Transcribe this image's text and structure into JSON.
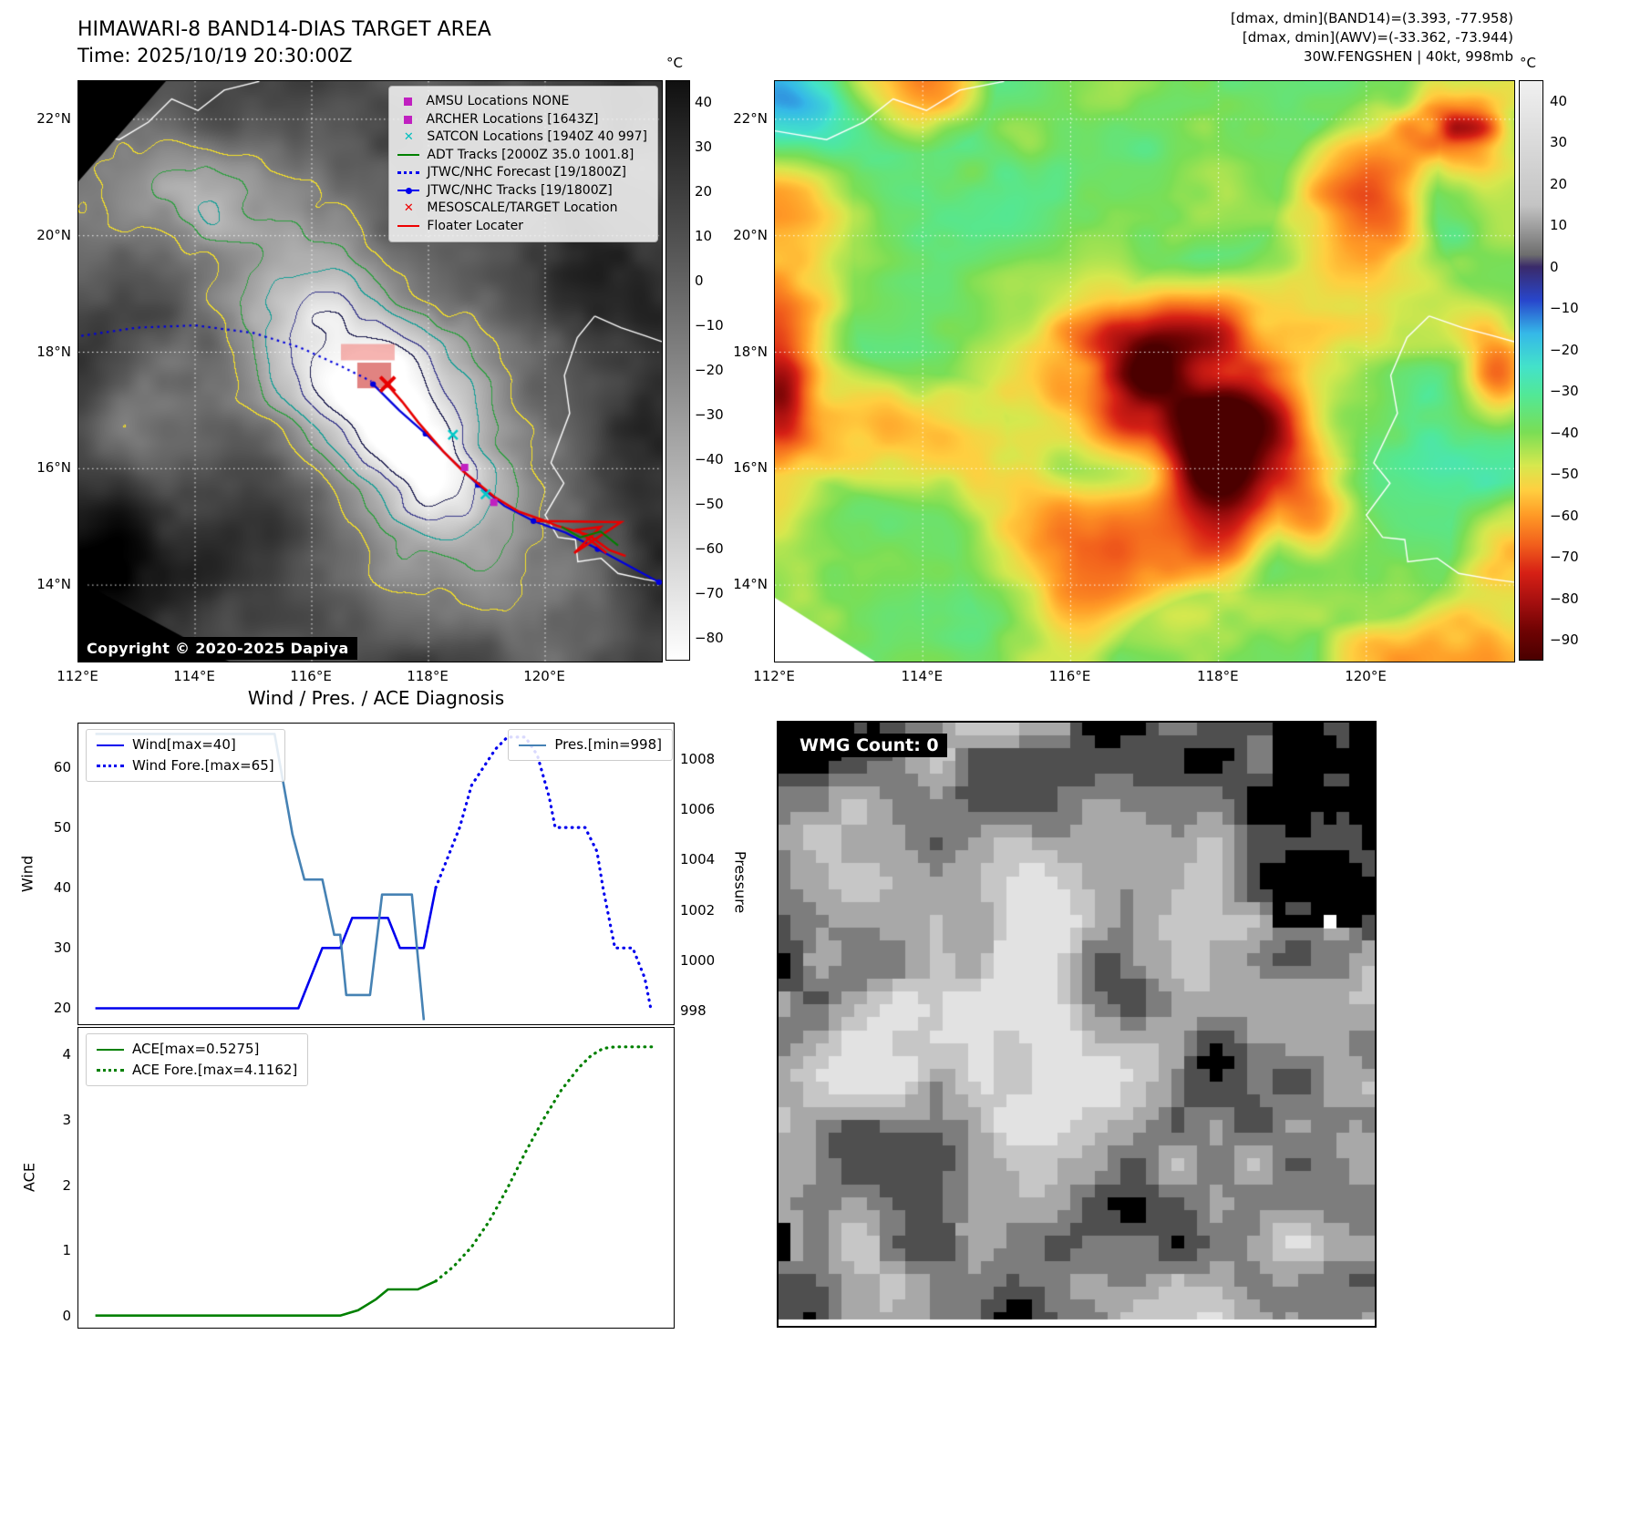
{
  "band14": {
    "title": "HIMAWARI-8 BAND14-DIAS TARGET AREA",
    "time_label": "Time: 2025/10/19 20:30:00Z",
    "copyright": "Copyright © 2020-2025 Dapiya",
    "colorbar_unit": "°C",
    "colorbar_ticks": [
      "40",
      "30",
      "20",
      "10",
      "0",
      "−10",
      "−20",
      "−30",
      "−40",
      "−50",
      "−60",
      "−70",
      "−80"
    ],
    "x_ticks": [
      "112°E",
      "114°E",
      "116°E",
      "118°E",
      "120°E"
    ],
    "y_ticks": [
      "22°N",
      "20°N",
      "18°N",
      "16°N",
      "14°N"
    ],
    "legend": [
      {
        "label": "AMSU Locations NONE",
        "type": "square",
        "color": "#c020c0"
      },
      {
        "label": "ARCHER Locations [1643Z]",
        "type": "square",
        "color": "#c020c0"
      },
      {
        "label": "SATCON Locations [1940Z 40 997]",
        "type": "x",
        "color": "#00bfbf"
      },
      {
        "label": "ADT Tracks [2000Z 35.0 1001.8]",
        "type": "line",
        "color": "#008000"
      },
      {
        "label": "JTWC/NHC Forecast [19/1800Z]",
        "type": "dotted",
        "color": "#0000ee"
      },
      {
        "label": "JTWC/NHC Tracks [19/1800Z]",
        "type": "line-dot",
        "color": "#0000ee"
      },
      {
        "label": "MESOSCALE/TARGET Location",
        "type": "x",
        "color": "#ee0000"
      },
      {
        "label": "Floater Locater",
        "type": "line",
        "color": "#ee0000"
      }
    ]
  },
  "awv": {
    "header_lines": [
      "[dmax, dmin](BAND14)=(3.393, -77.958)",
      "[dmax, dmin](AWV)=(-33.362, -73.944)",
      "30W.FENGSHEN | 40kt, 998mb"
    ],
    "colorbar_unit": "°C",
    "colorbar_ticks": [
      "40",
      "30",
      "20",
      "10",
      "0",
      "−10",
      "−20",
      "−30",
      "−40",
      "−50",
      "−60",
      "−70",
      "−80",
      "−90"
    ],
    "x_ticks": [
      "112°E",
      "114°E",
      "116°E",
      "118°E",
      "120°E"
    ],
    "y_ticks": [
      "22°N",
      "20°N",
      "18°N",
      "16°N",
      "14°N"
    ]
  },
  "wmg": {
    "count_label": "WMG Count: 0"
  },
  "chart_data": [
    {
      "type": "line",
      "title": "Wind / Pres. / ACE Diagnosis",
      "ylabel": "Wind",
      "y2label": "Pressure",
      "xlim": [
        0,
        100
      ],
      "ylim": [
        17.2,
        67.4
      ],
      "y2lim": [
        997.4,
        1009.45
      ],
      "yticks": [
        "60",
        "50",
        "40",
        "30",
        "20"
      ],
      "y2ticks": [
        "1008",
        "1006",
        "1004",
        "1002",
        "1000",
        "998"
      ],
      "grid": false,
      "legend_position": "upper left / upper right",
      "series": [
        {
          "name": "Wind[max=40]",
          "axis": "y",
          "color": "#0000ee",
          "style": "solid",
          "legend_box": "nw",
          "points": [
            [
              3,
              20
            ],
            [
              37,
              20
            ],
            [
              41,
              30
            ],
            [
              44,
              30
            ],
            [
              46,
              35
            ],
            [
              52,
              35
            ],
            [
              54,
              30
            ],
            [
              58,
              30
            ],
            [
              60,
              40
            ]
          ]
        },
        {
          "name": "Wind Fore.[max=65]",
          "axis": "y",
          "color": "#0000ee",
          "style": "dotted",
          "legend_box": "nw",
          "points": [
            [
              60,
              40
            ],
            [
              62,
              45
            ],
            [
              64,
              50
            ],
            [
              66,
              57
            ],
            [
              68,
              60
            ],
            [
              70,
              63
            ],
            [
              72,
              65
            ],
            [
              75,
              65
            ],
            [
              77,
              62
            ],
            [
              79,
              55
            ],
            [
              80,
              50
            ],
            [
              85,
              50
            ],
            [
              87,
              46
            ],
            [
              88,
              40
            ],
            [
              89,
              35
            ],
            [
              90,
              30
            ],
            [
              93,
              30
            ],
            [
              95,
              25
            ],
            [
              96,
              20
            ]
          ]
        },
        {
          "name": "Pres.[min=998]",
          "axis": "y2",
          "color": "#4682b4",
          "style": "solid",
          "legend_box": "ne",
          "points": [
            [
              3,
              1009
            ],
            [
              33,
              1009
            ],
            [
              36,
              1005
            ],
            [
              38,
              1003.2
            ],
            [
              41,
              1003.2
            ],
            [
              43,
              1001
            ],
            [
              44,
              1001
            ],
            [
              45,
              998.6
            ],
            [
              49,
              998.6
            ],
            [
              51,
              1002.6
            ],
            [
              56,
              1002.6
            ],
            [
              58,
              997.6
            ]
          ]
        }
      ]
    },
    {
      "type": "line",
      "title": "",
      "ylabel": "ACE",
      "xlim": [
        0,
        100
      ],
      "ylim": [
        -0.2,
        4.42
      ],
      "yticks": [
        "4",
        "3",
        "2",
        "1",
        "0"
      ],
      "grid": false,
      "legend_position": "upper left",
      "series": [
        {
          "name": "ACE[max=0.5275]",
          "axis": "y",
          "color": "#008000",
          "style": "solid",
          "legend_box": "nw",
          "points": [
            [
              3,
              0
            ],
            [
              44,
              0
            ],
            [
              47,
              0.08
            ],
            [
              50,
              0.25
            ],
            [
              52,
              0.4
            ],
            [
              57,
              0.4
            ],
            [
              60,
              0.5275
            ]
          ]
        },
        {
          "name": "ACE Fore.[max=4.1162]",
          "axis": "y",
          "color": "#008000",
          "style": "dotted",
          "legend_box": "nw",
          "points": [
            [
              60,
              0.5275
            ],
            [
              63,
              0.75
            ],
            [
              66,
              1.05
            ],
            [
              69,
              1.45
            ],
            [
              72,
              1.95
            ],
            [
              75,
              2.5
            ],
            [
              78,
              3.0
            ],
            [
              81,
              3.45
            ],
            [
              84,
              3.8
            ],
            [
              86,
              3.98
            ],
            [
              88,
              4.09
            ],
            [
              90,
              4.1162
            ],
            [
              97,
              4.1162
            ]
          ]
        }
      ]
    }
  ]
}
